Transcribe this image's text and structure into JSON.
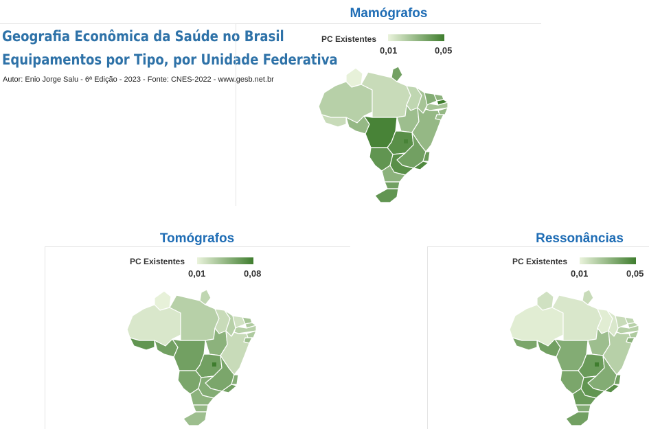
{
  "header": {
    "title_line1": "Geografia Econômica da Saúde no Brasil",
    "title_line2": "Equipamentos por Tipo, por Unidade Federativa",
    "subtitle": "Autor: Enio Jorge Salu - 6ª Edição - 2023 - Fonte: CNES-2022 - www.gesb.net.br"
  },
  "maps": [
    {
      "title": "Mamógrafos",
      "legend": {
        "label": "PC Existentes",
        "min_label": "0,01",
        "max_label": "0,05",
        "min": 0.01,
        "max": 0.05
      },
      "state_shading": {
        "RR": 0.02,
        "AP": 0.7,
        "AM": 0.3,
        "PA": 0.2,
        "AC": 0.2,
        "RO": 0.5,
        "MT": 0.95,
        "MS": 0.8,
        "TO": 0.45,
        "MA": 0.25,
        "PI": 0.4,
        "CE": 0.6,
        "RN": 0.55,
        "PB": 1.0,
        "PE": 0.4,
        "AL": 0.5,
        "SE": 0.45,
        "BA": 0.5,
        "GO": 0.85,
        "DF": 0.95,
        "MG": 0.7,
        "ES": 0.75,
        "RJ": 0.9,
        "SP": 0.85,
        "PR": 0.55,
        "SC": 0.7,
        "RS": 0.8
      },
      "colors": {
        "low": "#eaf3dc",
        "high": "#3f7d2e"
      }
    },
    {
      "title": "Tomógrafos",
      "legend": {
        "label": "PC Existentes",
        "min_label": "0,01",
        "max_label": "0,08",
        "min": 0.01,
        "max": 0.08
      },
      "state_shading": {
        "RR": 0.02,
        "AP": 0.25,
        "AM": 0.1,
        "PA": 0.3,
        "AC": 0.8,
        "RO": 0.7,
        "MT": 0.7,
        "MS": 0.65,
        "TO": 0.55,
        "MA": 0.2,
        "PI": 0.3,
        "CE": 0.15,
        "RN": 0.4,
        "PB": 0.35,
        "PE": 0.3,
        "AL": 0.35,
        "SE": 0.45,
        "BA": 0.2,
        "GO": 0.7,
        "DF": 1.0,
        "MG": 0.65,
        "ES": 0.6,
        "RJ": 0.7,
        "SP": 0.6,
        "PR": 0.55,
        "SC": 0.5,
        "RS": 0.45
      },
      "colors": {
        "low": "#eaf3dc",
        "high": "#3f7d2e"
      }
    },
    {
      "title": "Ressonâncias",
      "legend": {
        "label": "PC Existentes",
        "min_label": "0,01",
        "max_label": "0,05",
        "min": 0.01,
        "max": 0.05
      },
      "state_shading": {
        "RR": 0.15,
        "AP": 0.2,
        "AM": 0.05,
        "PA": 0.1,
        "AC": 0.65,
        "RO": 0.7,
        "MT": 0.6,
        "MS": 0.65,
        "TO": 0.45,
        "MA": 0.05,
        "PI": 0.1,
        "CE": 0.2,
        "RN": 0.25,
        "PB": 0.3,
        "PE": 0.3,
        "AL": 0.35,
        "SE": 0.55,
        "BA": 0.3,
        "GO": 0.75,
        "DF": 1.0,
        "MG": 0.6,
        "ES": 0.7,
        "RJ": 0.85,
        "SP": 0.8,
        "PR": 0.75,
        "SC": 0.6,
        "RS": 0.7
      },
      "colors": {
        "low": "#eaf3dc",
        "high": "#3f7d2e"
      }
    }
  ]
}
